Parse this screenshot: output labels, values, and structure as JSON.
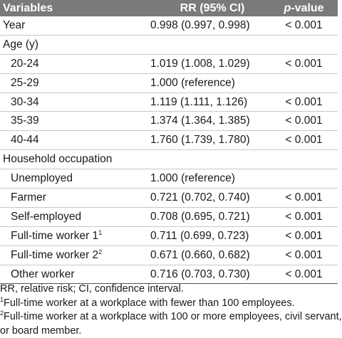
{
  "header": {
    "variables": "Variables",
    "rr": "RR (95% CI)",
    "p_label_italic": "p",
    "p_label_rest": "-value"
  },
  "rows": [
    {
      "label": "Year",
      "rr": "0.998 (0.997, 0.998)",
      "p": "< 0.001"
    },
    {
      "label": "Age (y)",
      "rr": "",
      "p": ""
    },
    {
      "label": "20-24",
      "rr": "1.019 (1.008, 1.029)",
      "p": "< 0.001"
    },
    {
      "label": "25-29",
      "rr": "1.000 (reference)",
      "p": ""
    },
    {
      "label": "30-34",
      "rr": "1.119 (1.111, 1.126)",
      "p": "< 0.001"
    },
    {
      "label": "35-39",
      "rr": "1.374 (1.364, 1.385)",
      "p": "< 0.001"
    },
    {
      "label": "40-44",
      "rr": "1.760 (1.739, 1.780)",
      "p": "< 0.001"
    },
    {
      "label": "Household occupation",
      "rr": "",
      "p": ""
    },
    {
      "label": "Unemployed",
      "rr": "1.000 (reference)",
      "p": ""
    },
    {
      "label": "Farmer",
      "rr": "0.721 (0.702, 0.740)",
      "p": "< 0.001"
    },
    {
      "label": "Self-employed",
      "rr": "0.708 (0.695, 0.721)",
      "p": "< 0.001"
    },
    {
      "label": "Full-time worker 1",
      "sup": "1",
      "rr": "0.711 (0.699, 0.723)",
      "p": "< 0.001"
    },
    {
      "label": "Full-time worker 2",
      "sup": "2",
      "rr": "0.671 (0.660, 0.682)",
      "p": "< 0.001"
    },
    {
      "label": "Other worker",
      "rr": "0.716 (0.703, 0.730)",
      "p": "< 0.001"
    }
  ],
  "footnotes": {
    "abbrev": "RR, relative risk; CI, confidence interval.",
    "note1_mark": "1",
    "note1": "Full-time worker at a workplace with fewer than 100 employees.",
    "note2_mark": "2",
    "note2_line1": "Full-time worker at a workplace with 100 or more employees, civil servant,",
    "note2_line2": "or board member."
  }
}
